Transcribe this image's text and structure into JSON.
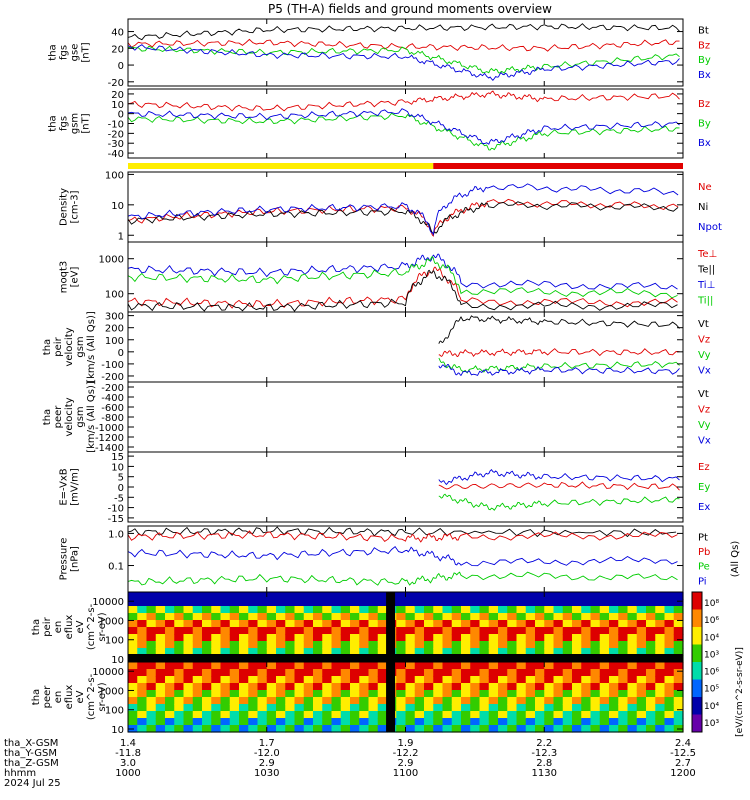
{
  "title": "P5 (TH-A) fields and ground moments overview",
  "colors": {
    "black": "#000000",
    "red": "#e00000",
    "green": "#00cc00",
    "blue": "#0000dd",
    "yellow": "#ffee00"
  },
  "chart_data": [
    {
      "type": "line",
      "ylabel": [
        "tha",
        "fgs",
        "gse",
        "[nT]"
      ],
      "ticks": [
        "40",
        "20",
        "0",
        "-20"
      ],
      "tick_values": [
        40,
        20,
        0,
        -20
      ],
      "ylim": [
        -25,
        55
      ],
      "x_range": [
        "10:00",
        "12:00"
      ],
      "series": [
        {
          "name": "Bt",
          "color": "#000000",
          "values": [
            [
              0.0,
              33
            ],
            [
              0.5,
              42
            ],
            [
              1.0,
              44
            ],
            [
              1.5,
              46
            ],
            [
              2.0,
              44
            ]
          ]
        },
        {
          "name": "Bz",
          "color": "#e00000",
          "values": [
            [
              0.0,
              25
            ],
            [
              0.5,
              27
            ],
            [
              1.0,
              22
            ],
            [
              1.5,
              20
            ],
            [
              2.0,
              28
            ]
          ]
        },
        {
          "name": "By",
          "color": "#00cc00",
          "values": [
            [
              0.0,
              20
            ],
            [
              0.5,
              15
            ],
            [
              1.0,
              18
            ],
            [
              1.3,
              -8
            ],
            [
              1.5,
              -2
            ],
            [
              2.0,
              12
            ]
          ]
        },
        {
          "name": "Bx",
          "color": "#0000dd",
          "values": [
            [
              0.0,
              22
            ],
            [
              0.5,
              12
            ],
            [
              1.0,
              10
            ],
            [
              1.3,
              -15
            ],
            [
              1.5,
              -5
            ],
            [
              2.0,
              5
            ]
          ]
        }
      ]
    },
    {
      "type": "line",
      "ylabel": [
        "tha",
        "fgs",
        "gsm",
        "[nT]"
      ],
      "ticks": [
        "20",
        "10",
        "0",
        "-10",
        "-20",
        "-30",
        "-40"
      ],
      "tick_values": [
        20,
        10,
        0,
        -10,
        -20,
        -30,
        -40
      ],
      "ylim": [
        -45,
        25
      ],
      "x_range": [
        "10:00",
        "12:00"
      ],
      "series": [
        {
          "name": "Bz",
          "color": "#e00000",
          "values": [
            [
              0.0,
              10
            ],
            [
              0.5,
              5
            ],
            [
              1.0,
              12
            ],
            [
              1.3,
              20
            ],
            [
              1.5,
              15
            ],
            [
              2.0,
              18
            ]
          ]
        },
        {
          "name": "By",
          "color": "#00cc00",
          "values": [
            [
              0.0,
              -5
            ],
            [
              0.5,
              -8
            ],
            [
              1.0,
              -2
            ],
            [
              1.3,
              -35
            ],
            [
              1.5,
              -20
            ],
            [
              2.0,
              -15
            ]
          ]
        },
        {
          "name": "Bx",
          "color": "#0000dd",
          "values": [
            [
              0.0,
              0
            ],
            [
              0.5,
              -3
            ],
            [
              1.0,
              2
            ],
            [
              1.3,
              -30
            ],
            [
              1.5,
              -15
            ],
            [
              2.0,
              -10
            ]
          ]
        }
      ]
    },
    {
      "type": "line",
      "ylabel": [
        "Density",
        "[cm-3]"
      ],
      "ticks": [
        "100",
        "10",
        "1"
      ],
      "tick_values": [
        100,
        10,
        1
      ],
      "ylim": [
        0.6,
        120
      ],
      "scale": "log",
      "x_range": [
        "10:00",
        "12:00"
      ],
      "series": [
        {
          "name": "Ne",
          "color": "#e00000",
          "values": [
            [
              0.0,
              3
            ],
            [
              0.5,
              6
            ],
            [
              1.0,
              8
            ],
            [
              1.1,
              1
            ],
            [
              1.3,
              12
            ],
            [
              2.0,
              9
            ]
          ]
        },
        {
          "name": "Ni",
          "color": "#000000",
          "values": [
            [
              0.0,
              3
            ],
            [
              0.5,
              5
            ],
            [
              1.0,
              6
            ],
            [
              1.1,
              1
            ],
            [
              1.3,
              10
            ],
            [
              2.0,
              8
            ]
          ]
        },
        {
          "name": "Npot",
          "color": "#0000dd",
          "values": [
            [
              0.0,
              4
            ],
            [
              0.5,
              7
            ],
            [
              1.0,
              9
            ],
            [
              1.1,
              1
            ],
            [
              1.3,
              40
            ],
            [
              2.0,
              25
            ]
          ]
        }
      ]
    },
    {
      "type": "line",
      "ylabel": [
        "moqt3",
        "[eV]"
      ],
      "ticks": [
        "1000",
        "100"
      ],
      "tick_values": [
        1000,
        100
      ],
      "ylim": [
        30,
        3000
      ],
      "scale": "log",
      "x_range": [
        "10:00",
        "12:00"
      ],
      "series": [
        {
          "name": "Te⊥",
          "color": "#e00000",
          "values": [
            [
              0.0,
              60
            ],
            [
              0.5,
              50
            ],
            [
              1.0,
              70
            ],
            [
              1.1,
              500
            ],
            [
              1.2,
              60
            ],
            [
              2.0,
              55
            ]
          ]
        },
        {
          "name": "Te||",
          "color": "#000000",
          "values": [
            [
              0.0,
              45
            ],
            [
              0.5,
              40
            ],
            [
              1.0,
              55
            ],
            [
              1.1,
              400
            ],
            [
              1.2,
              45
            ],
            [
              2.0,
              45
            ]
          ]
        },
        {
          "name": "Ti⊥",
          "color": "#0000dd",
          "values": [
            [
              0.0,
              500
            ],
            [
              0.5,
              400
            ],
            [
              1.0,
              600
            ],
            [
              1.1,
              1200
            ],
            [
              1.2,
              200
            ],
            [
              2.0,
              150
            ]
          ]
        },
        {
          "name": "Ti||",
          "color": "#00cc00",
          "values": [
            [
              0.0,
              300
            ],
            [
              0.5,
              250
            ],
            [
              1.0,
              400
            ],
            [
              1.1,
              900
            ],
            [
              1.2,
              120
            ],
            [
              2.0,
              100
            ]
          ]
        }
      ]
    },
    {
      "type": "line",
      "ylabel": [
        "tha",
        "peir",
        "velocity",
        "gsm",
        "[km/s (All Qs)]"
      ],
      "ticks": [
        "300",
        "200",
        "100",
        "0",
        "-100",
        "-200"
      ],
      "tick_values": [
        300,
        200,
        100,
        0,
        -100,
        -200
      ],
      "ylim": [
        -250,
        330
      ],
      "x_range": [
        "10:00",
        "12:00"
      ],
      "series": [
        {
          "name": "Vt",
          "color": "#000000",
          "values": [
            [
              1.12,
              50
            ],
            [
              1.2,
              280
            ],
            [
              1.5,
              250
            ],
            [
              2.0,
              220
            ]
          ]
        },
        {
          "name": "Vz",
          "color": "#e00000",
          "values": [
            [
              1.12,
              -20
            ],
            [
              1.2,
              -10
            ],
            [
              1.5,
              0
            ],
            [
              2.0,
              -5
            ]
          ]
        },
        {
          "name": "Vy",
          "color": "#00cc00",
          "values": [
            [
              1.12,
              -80
            ],
            [
              1.2,
              -150
            ],
            [
              1.5,
              -120
            ],
            [
              2.0,
              -100
            ]
          ]
        },
        {
          "name": "Vx",
          "color": "#0000dd",
          "values": [
            [
              1.12,
              -100
            ],
            [
              1.2,
              -180
            ],
            [
              1.5,
              -150
            ],
            [
              2.0,
              -160
            ]
          ]
        }
      ]
    },
    {
      "type": "line",
      "ylabel": [
        "tha",
        "peer",
        "velocity",
        "gsm",
        "[km/s (All Qs)]"
      ],
      "ticks": [
        "-200",
        "-400",
        "-600",
        "-800",
        "-1000",
        "-1200",
        "-1400"
      ],
      "tick_values": [
        -200,
        -400,
        -600,
        -800,
        -1000,
        -1200,
        -1400
      ],
      "ylim": [
        -1500,
        -100
      ],
      "x_range": [
        "10:00",
        "12:00"
      ],
      "series": [
        {
          "name": "Vt",
          "color": "#000000",
          "values": []
        },
        {
          "name": "Vz",
          "color": "#e00000",
          "values": []
        },
        {
          "name": "Vy",
          "color": "#00cc00",
          "values": []
        },
        {
          "name": "Vx",
          "color": "#0000dd",
          "values": []
        }
      ]
    },
    {
      "type": "line",
      "ylabel": [
        "E=-VxB",
        "[mV/m]"
      ],
      "ticks": [
        "15",
        "10",
        "5",
        "0",
        "-5",
        "-10",
        "-15"
      ],
      "tick_values": [
        15,
        10,
        5,
        0,
        -5,
        -10,
        -15
      ],
      "ylim": [
        -17,
        17
      ],
      "x_range": [
        "10:00",
        "12:00"
      ],
      "series": [
        {
          "name": "Ez",
          "color": "#e00000",
          "values": [
            [
              1.12,
              0
            ],
            [
              1.5,
              1
            ],
            [
              2.0,
              0
            ]
          ]
        },
        {
          "name": "Ey",
          "color": "#00cc00",
          "values": [
            [
              1.12,
              -4
            ],
            [
              1.3,
              -10
            ],
            [
              1.5,
              -8
            ],
            [
              2.0,
              -6
            ]
          ]
        },
        {
          "name": "Ex",
          "color": "#0000dd",
          "values": [
            [
              1.12,
              2
            ],
            [
              1.3,
              7
            ],
            [
              1.5,
              5
            ],
            [
              2.0,
              4
            ]
          ]
        }
      ]
    },
    {
      "type": "line",
      "ylabel": [
        "Pressure",
        "[nPa]"
      ],
      "ticks": [
        "1.0",
        "0.1"
      ],
      "tick_values": [
        1,
        0.1
      ],
      "ylim": [
        0.015,
        1.7
      ],
      "scale": "log",
      "x_range": [
        "10:00",
        "12:00"
      ],
      "series": [
        {
          "name": "Pt",
          "color": "#000000",
          "values": [
            [
              0.0,
              1.1
            ],
            [
              0.5,
              1.2
            ],
            [
              1.0,
              1.1
            ],
            [
              2.0,
              1.05
            ]
          ]
        },
        {
          "name": "Pb",
          "color": "#e00000",
          "values": [
            [
              0.0,
              0.8
            ],
            [
              0.5,
              0.9
            ],
            [
              1.0,
              0.7
            ],
            [
              1.2,
              0.8
            ],
            [
              2.0,
              0.85
            ]
          ]
        },
        {
          "name": "Pe",
          "color": "#00cc00",
          "values": [
            [
              0.0,
              0.03
            ],
            [
              0.5,
              0.04
            ],
            [
              1.0,
              0.03
            ],
            [
              1.2,
              0.05
            ],
            [
              2.0,
              0.04
            ]
          ]
        },
        {
          "name": "Pi",
          "color": "#0000dd",
          "values": [
            [
              0.0,
              0.25
            ],
            [
              0.5,
              0.2
            ],
            [
              1.0,
              0.3
            ],
            [
              1.2,
              0.12
            ],
            [
              2.0,
              0.15
            ]
          ]
        }
      ],
      "right_label": "(All Qs)"
    },
    {
      "type": "heatmap",
      "ylabel": [
        "tha",
        "peir",
        "en",
        "eflux",
        "eV",
        "(cm^2-s-",
        "sr-eV)"
      ],
      "ticks": [
        "10000",
        "1000",
        "100",
        "10"
      ],
      "tick_values": [
        10000,
        1000,
        100,
        10
      ],
      "ylim": [
        7,
        30000
      ],
      "scale": "log",
      "x_range": [
        "10:00",
        "12:00"
      ]
    },
    {
      "type": "heatmap",
      "ylabel": [
        "tha",
        "peer",
        "en",
        "eflux",
        "eV",
        "(cm^2-s-",
        "sr-eV)"
      ],
      "ticks": [
        "10000",
        "1000",
        "100",
        "10"
      ],
      "tick_values": [
        10000,
        1000,
        100,
        10
      ],
      "ylim": [
        7,
        30000
      ],
      "scale": "log",
      "x_range": [
        "10:00",
        "12:00"
      ]
    }
  ],
  "spectra_colorbar": {
    "ticks": [
      "10⁸",
      "10⁶",
      "10⁴",
      "10³",
      "10⁶",
      "10⁵",
      "10⁴",
      "10³"
    ],
    "label": "[eV/(cm^2-s-sr-eV)]"
  },
  "status_bar": {
    "left": "yellow",
    "right": "red"
  },
  "x_axis": {
    "tha_X_GSM": {
      "label": "tha_X-GSM",
      "values": [
        "1.4",
        "1.7",
        "1.9",
        "2.2",
        "2.4"
      ]
    },
    "tha_Y_GSM": {
      "label": "tha_Y-GSM",
      "values": [
        "-11.8",
        "-12.0",
        "-12.2",
        "-12.3",
        "-12.5"
      ]
    },
    "tha_Z_GSM": {
      "label": "tha_Z-GSM",
      "values": [
        "3.0",
        "2.9",
        "2.9",
        "2.8",
        "2.7"
      ]
    },
    "hhmm": {
      "label": "hhmm",
      "values": [
        "1000",
        "1030",
        "1100",
        "1130",
        "1200"
      ]
    },
    "date": "2024 Jul 25"
  }
}
